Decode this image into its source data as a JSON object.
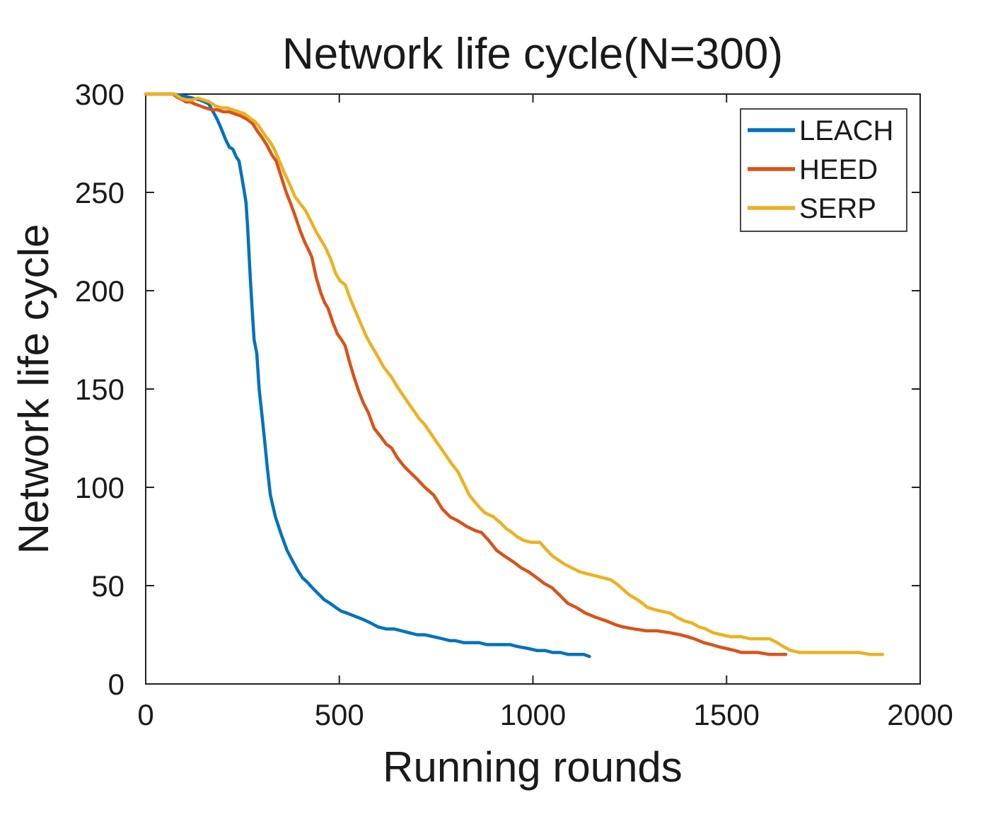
{
  "chart_data": {
    "type": "line",
    "title": "Network life cycle(N=300)",
    "xlabel": "Running rounds",
    "ylabel": "Network life cycle",
    "xlim": [
      0,
      2000
    ],
    "ylim": [
      0,
      300
    ],
    "xticks": [
      0,
      500,
      1000,
      1500,
      2000
    ],
    "yticks": [
      0,
      50,
      100,
      150,
      200,
      250,
      300
    ],
    "grid": false,
    "legend_position": "top-right",
    "axis_color": "#222222",
    "series": [
      {
        "name": "LEACH",
        "color": "#0072BD",
        "points": [
          [
            0,
            300
          ],
          [
            70,
            300
          ],
          [
            100,
            299
          ],
          [
            120,
            298
          ],
          [
            140,
            297
          ],
          [
            152,
            296
          ],
          [
            163,
            295
          ],
          [
            174,
            291
          ],
          [
            185,
            287
          ],
          [
            196,
            282
          ],
          [
            206,
            277
          ],
          [
            216,
            273
          ],
          [
            225,
            272
          ],
          [
            234,
            268
          ],
          [
            241,
            266
          ],
          [
            248,
            258
          ],
          [
            254,
            251
          ],
          [
            259,
            245
          ],
          [
            263,
            233
          ],
          [
            266,
            222
          ],
          [
            270,
            207
          ],
          [
            275,
            190
          ],
          [
            280,
            175
          ],
          [
            287,
            168
          ],
          [
            293,
            150
          ],
          [
            300,
            137
          ],
          [
            307,
            124
          ],
          [
            314,
            110
          ],
          [
            322,
            96
          ],
          [
            335,
            85
          ],
          [
            350,
            76
          ],
          [
            365,
            68
          ],
          [
            378,
            63
          ],
          [
            392,
            58
          ],
          [
            405,
            54
          ],
          [
            416,
            52
          ],
          [
            430,
            49
          ],
          [
            445,
            46
          ],
          [
            460,
            43
          ],
          [
            476,
            41
          ],
          [
            490,
            39
          ],
          [
            505,
            37
          ],
          [
            520,
            36
          ],
          [
            533,
            35
          ],
          [
            546,
            34
          ],
          [
            559,
            33
          ],
          [
            570,
            32
          ],
          [
            581,
            31
          ],
          [
            600,
            29
          ],
          [
            621,
            28
          ],
          [
            641,
            28
          ],
          [
            661,
            27
          ],
          [
            681,
            26
          ],
          [
            701,
            25
          ],
          [
            721,
            25
          ],
          [
            744,
            24
          ],
          [
            766,
            23
          ],
          [
            786,
            22
          ],
          [
            800,
            22
          ],
          [
            821,
            21
          ],
          [
            841,
            21
          ],
          [
            861,
            21
          ],
          [
            881,
            20
          ],
          [
            916,
            20
          ],
          [
            941,
            20
          ],
          [
            961,
            19
          ],
          [
            989,
            18
          ],
          [
            1010,
            17
          ],
          [
            1031,
            17
          ],
          [
            1051,
            16
          ],
          [
            1071,
            16
          ],
          [
            1091,
            15
          ],
          [
            1111,
            15
          ],
          [
            1131,
            15
          ],
          [
            1146,
            14
          ]
        ]
      },
      {
        "name": "HEED",
        "color": "#D95319",
        "points": [
          [
            0,
            300
          ],
          [
            70,
            300
          ],
          [
            85,
            298
          ],
          [
            96,
            297
          ],
          [
            104,
            296
          ],
          [
            116,
            296
          ],
          [
            126,
            295
          ],
          [
            140,
            294
          ],
          [
            154,
            293
          ],
          [
            170,
            292
          ],
          [
            186,
            292
          ],
          [
            200,
            291
          ],
          [
            215,
            291
          ],
          [
            229,
            290
          ],
          [
            245,
            289
          ],
          [
            263,
            287
          ],
          [
            276,
            285
          ],
          [
            289,
            281
          ],
          [
            300,
            278
          ],
          [
            313,
            274
          ],
          [
            326,
            269
          ],
          [
            337,
            266
          ],
          [
            350,
            258
          ],
          [
            363,
            250
          ],
          [
            375,
            244
          ],
          [
            386,
            238
          ],
          [
            398,
            231
          ],
          [
            410,
            225
          ],
          [
            420,
            221
          ],
          [
            429,
            217
          ],
          [
            440,
            207
          ],
          [
            452,
            199
          ],
          [
            462,
            194
          ],
          [
            471,
            191
          ],
          [
            483,
            184
          ],
          [
            495,
            178
          ],
          [
            506,
            175
          ],
          [
            515,
            172
          ],
          [
            526,
            164
          ],
          [
            538,
            156
          ],
          [
            550,
            149
          ],
          [
            562,
            143
          ],
          [
            575,
            138
          ],
          [
            590,
            130
          ],
          [
            606,
            126
          ],
          [
            621,
            122
          ],
          [
            635,
            120
          ],
          [
            650,
            115
          ],
          [
            666,
            111
          ],
          [
            681,
            108
          ],
          [
            702,
            104
          ],
          [
            721,
            100
          ],
          [
            744,
            96
          ],
          [
            766,
            89
          ],
          [
            786,
            85
          ],
          [
            806,
            83
          ],
          [
            830,
            80
          ],
          [
            851,
            78
          ],
          [
            867,
            77
          ],
          [
            886,
            73
          ],
          [
            906,
            68
          ],
          [
            927,
            65
          ],
          [
            950,
            62
          ],
          [
            970,
            59
          ],
          [
            989,
            57
          ],
          [
            1010,
            54
          ],
          [
            1030,
            51
          ],
          [
            1049,
            49
          ],
          [
            1070,
            45
          ],
          [
            1090,
            41
          ],
          [
            1111,
            39
          ],
          [
            1136,
            36
          ],
          [
            1161,
            34
          ],
          [
            1190,
            32
          ],
          [
            1215,
            30
          ],
          [
            1233,
            29
          ],
          [
            1261,
            28
          ],
          [
            1293,
            27
          ],
          [
            1321,
            27
          ],
          [
            1355,
            26
          ],
          [
            1381,
            25
          ],
          [
            1400,
            24
          ],
          [
            1416,
            23
          ],
          [
            1441,
            21
          ],
          [
            1461,
            20
          ],
          [
            1478,
            19
          ],
          [
            1500,
            18
          ],
          [
            1521,
            17
          ],
          [
            1538,
            16
          ],
          [
            1561,
            16
          ],
          [
            1581,
            16
          ],
          [
            1611,
            15
          ],
          [
            1631,
            15
          ],
          [
            1653,
            15
          ]
        ]
      },
      {
        "name": "SERP",
        "color": "#EDB120",
        "points": [
          [
            0,
            300
          ],
          [
            75,
            300
          ],
          [
            90,
            298
          ],
          [
            105,
            297
          ],
          [
            120,
            297
          ],
          [
            135,
            298
          ],
          [
            150,
            297
          ],
          [
            165,
            296
          ],
          [
            180,
            294
          ],
          [
            195,
            293
          ],
          [
            210,
            293
          ],
          [
            225,
            292
          ],
          [
            240,
            291
          ],
          [
            255,
            290
          ],
          [
            268,
            288
          ],
          [
            282,
            286
          ],
          [
            295,
            283
          ],
          [
            308,
            279
          ],
          [
            320,
            276
          ],
          [
            332,
            272
          ],
          [
            345,
            266
          ],
          [
            358,
            260
          ],
          [
            372,
            254
          ],
          [
            385,
            248
          ],
          [
            400,
            244
          ],
          [
            412,
            241
          ],
          [
            425,
            236
          ],
          [
            440,
            230
          ],
          [
            452,
            226
          ],
          [
            464,
            222
          ],
          [
            478,
            216
          ],
          [
            490,
            209
          ],
          [
            502,
            205
          ],
          [
            515,
            203
          ],
          [
            528,
            196
          ],
          [
            543,
            189
          ],
          [
            556,
            183
          ],
          [
            569,
            177
          ],
          [
            583,
            172
          ],
          [
            598,
            167
          ],
          [
            615,
            161
          ],
          [
            635,
            156
          ],
          [
            650,
            151
          ],
          [
            664,
            147
          ],
          [
            678,
            143
          ],
          [
            692,
            139
          ],
          [
            706,
            135
          ],
          [
            720,
            132
          ],
          [
            734,
            128
          ],
          [
            748,
            124
          ],
          [
            762,
            120
          ],
          [
            776,
            116
          ],
          [
            790,
            112
          ],
          [
            806,
            108
          ],
          [
            816,
            104
          ],
          [
            826,
            100
          ],
          [
            836,
            96
          ],
          [
            848,
            93
          ],
          [
            861,
            90
          ],
          [
            876,
            87
          ],
          [
            898,
            85
          ],
          [
            916,
            82
          ],
          [
            931,
            79
          ],
          [
            946,
            77
          ],
          [
            958,
            75
          ],
          [
            976,
            73
          ],
          [
            996,
            72
          ],
          [
            1018,
            72
          ],
          [
            1036,
            68
          ],
          [
            1051,
            65
          ],
          [
            1066,
            63
          ],
          [
            1081,
            61
          ],
          [
            1101,
            59
          ],
          [
            1121,
            57
          ],
          [
            1141,
            56
          ],
          [
            1161,
            55
          ],
          [
            1181,
            54
          ],
          [
            1201,
            53
          ],
          [
            1216,
            51
          ],
          [
            1233,
            48
          ],
          [
            1251,
            45
          ],
          [
            1269,
            43
          ],
          [
            1283,
            41
          ],
          [
            1295,
            39
          ],
          [
            1311,
            38
          ],
          [
            1331,
            37
          ],
          [
            1355,
            36
          ],
          [
            1371,
            34
          ],
          [
            1391,
            32
          ],
          [
            1411,
            31
          ],
          [
            1429,
            29
          ],
          [
            1446,
            28
          ],
          [
            1466,
            26
          ],
          [
            1488,
            25
          ],
          [
            1511,
            24
          ],
          [
            1538,
            24
          ],
          [
            1561,
            23
          ],
          [
            1586,
            23
          ],
          [
            1611,
            23
          ],
          [
            1631,
            21
          ],
          [
            1647,
            19
          ],
          [
            1666,
            17
          ],
          [
            1689,
            16
          ],
          [
            1721,
            16
          ],
          [
            1751,
            16
          ],
          [
            1781,
            16
          ],
          [
            1811,
            16
          ],
          [
            1841,
            16
          ],
          [
            1871,
            15
          ],
          [
            1903,
            15
          ]
        ]
      }
    ]
  }
}
